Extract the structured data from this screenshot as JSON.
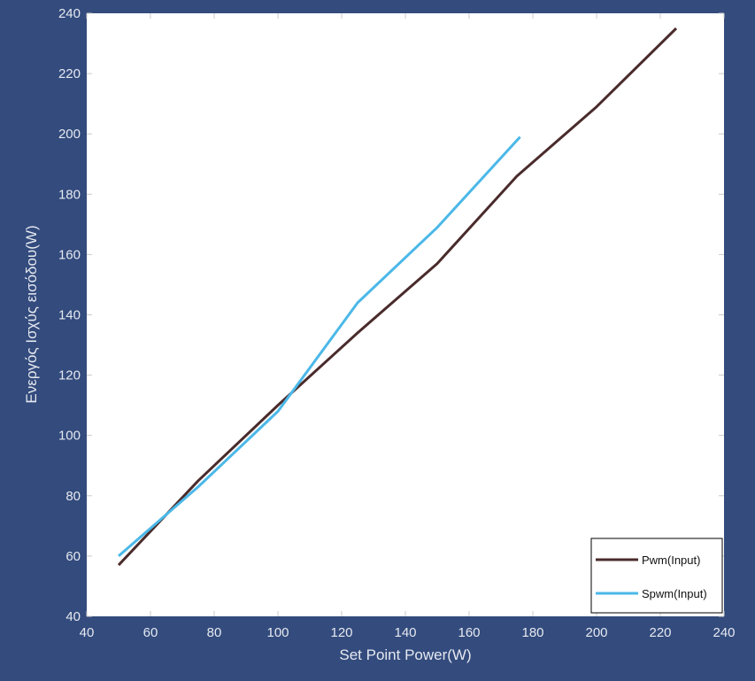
{
  "chart_data": {
    "type": "line",
    "xlabel": "Set Point Power(W)",
    "ylabel": "Ενεργός Ισχύς εισόδου(W)",
    "xlim": [
      40,
      240
    ],
    "ylim": [
      40,
      240
    ],
    "xticks": [
      40,
      60,
      80,
      100,
      120,
      140,
      160,
      180,
      200,
      220,
      240
    ],
    "yticks": [
      40,
      60,
      80,
      100,
      120,
      140,
      160,
      180,
      200,
      220,
      240
    ],
    "grid": false,
    "legend_position": "bottom-right",
    "series": [
      {
        "name": "Pwm(Input)",
        "color": "#4a2b2b",
        "x": [
          50,
          75,
          100,
          125,
          150,
          175,
          200,
          225
        ],
        "y": [
          57,
          85,
          110,
          134,
          157,
          186,
          209,
          235
        ]
      },
      {
        "name": "Spwm(Input)",
        "color": "#4bb8e8",
        "x": [
          50,
          75,
          100,
          125,
          150,
          176
        ],
        "y": [
          60,
          83,
          108,
          144,
          169,
          199
        ]
      }
    ]
  }
}
